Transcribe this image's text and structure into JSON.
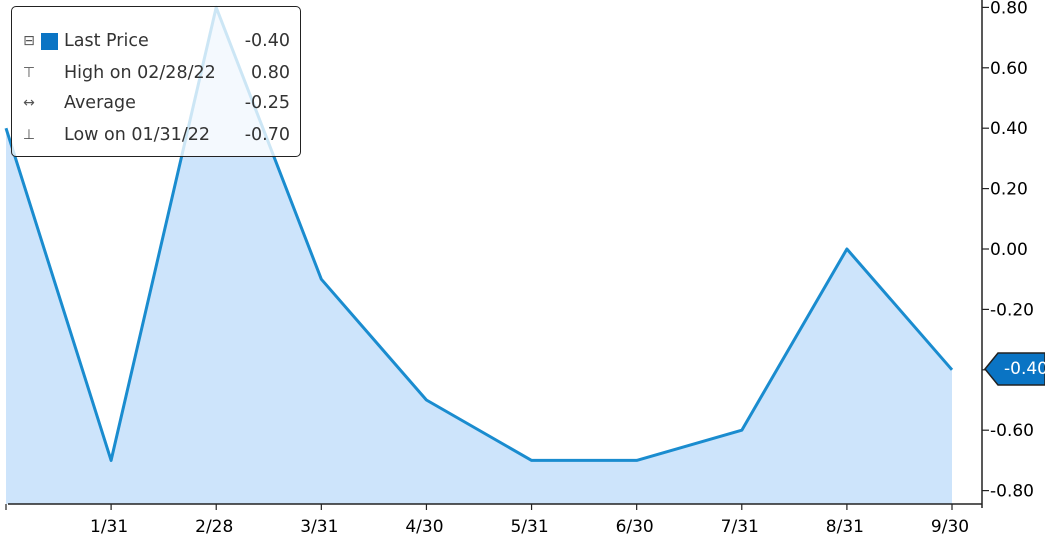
{
  "chart_data": {
    "type": "area",
    "categories": [
      "",
      "1/31",
      "2/28",
      "3/31",
      "4/30",
      "5/31",
      "6/30",
      "7/31",
      "8/31",
      "9/30"
    ],
    "series": [
      {
        "name": "Last Price",
        "values": [
          0.4,
          -0.7,
          0.8,
          -0.1,
          -0.5,
          -0.7,
          -0.7,
          -0.6,
          0.0,
          -0.4
        ]
      }
    ],
    "ylim": [
      -0.85,
      0.85
    ],
    "yticks": [
      0.8,
      0.6,
      0.4,
      0.2,
      0.0,
      -0.2,
      -0.4,
      -0.6,
      -0.8
    ],
    "ytick_labels": [
      "0.80",
      "0.60",
      "0.40",
      "0.20",
      "0.00",
      "-0.20",
      "-0.40",
      "-0.60",
      "-0.80"
    ],
    "y_axis_side": "right",
    "grid": false,
    "legend_position": "top-left",
    "line_color": "#1a8ccf",
    "fill_color": "#cde4fb",
    "current_price_label": "-0.40"
  },
  "legend": {
    "items": [
      {
        "glyph": "⊟",
        "label": "Last Price",
        "value": "-0.40",
        "swatch": true
      },
      {
        "glyph": "⊤",
        "label": "High on 02/28/22",
        "value": "0.80",
        "swatch": false
      },
      {
        "glyph": "↔",
        "label": "Average",
        "value": "-0.25",
        "swatch": false
      },
      {
        "glyph": "⊥",
        "label": "Low on 01/31/22",
        "value": "-0.70",
        "swatch": false
      }
    ]
  }
}
